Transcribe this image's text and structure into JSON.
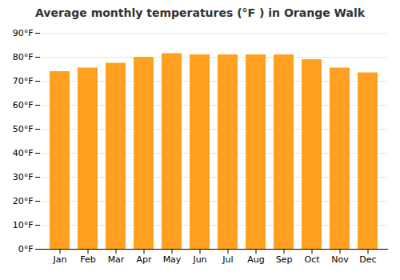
{
  "chart_data": {
    "type": "bar",
    "title": "Average monthly temperatures (°F ) in Orange Walk",
    "categories": [
      "Jan",
      "Feb",
      "Mar",
      "Apr",
      "May",
      "Jun",
      "Jul",
      "Aug",
      "Sep",
      "Oct",
      "Nov",
      "Dec"
    ],
    "values": [
      74,
      75.5,
      77.5,
      80,
      81.5,
      81,
      81,
      81,
      81,
      79,
      75.5,
      73.5
    ],
    "color": "#FFA020",
    "ylim": [
      0,
      90
    ],
    "yticks": [
      {
        "value": 0,
        "label": "0°F"
      },
      {
        "value": 10,
        "label": "10°F"
      },
      {
        "value": 20,
        "label": "20°F"
      },
      {
        "value": 30,
        "label": "30°F"
      },
      {
        "value": 40,
        "label": "40°F"
      },
      {
        "value": 50,
        "label": "50°F"
      },
      {
        "value": 60,
        "label": "60°F"
      },
      {
        "value": 70,
        "label": "70°F"
      },
      {
        "value": 80,
        "label": "80°F"
      },
      {
        "value": 90,
        "label": "90°F"
      }
    ],
    "grid": true
  }
}
